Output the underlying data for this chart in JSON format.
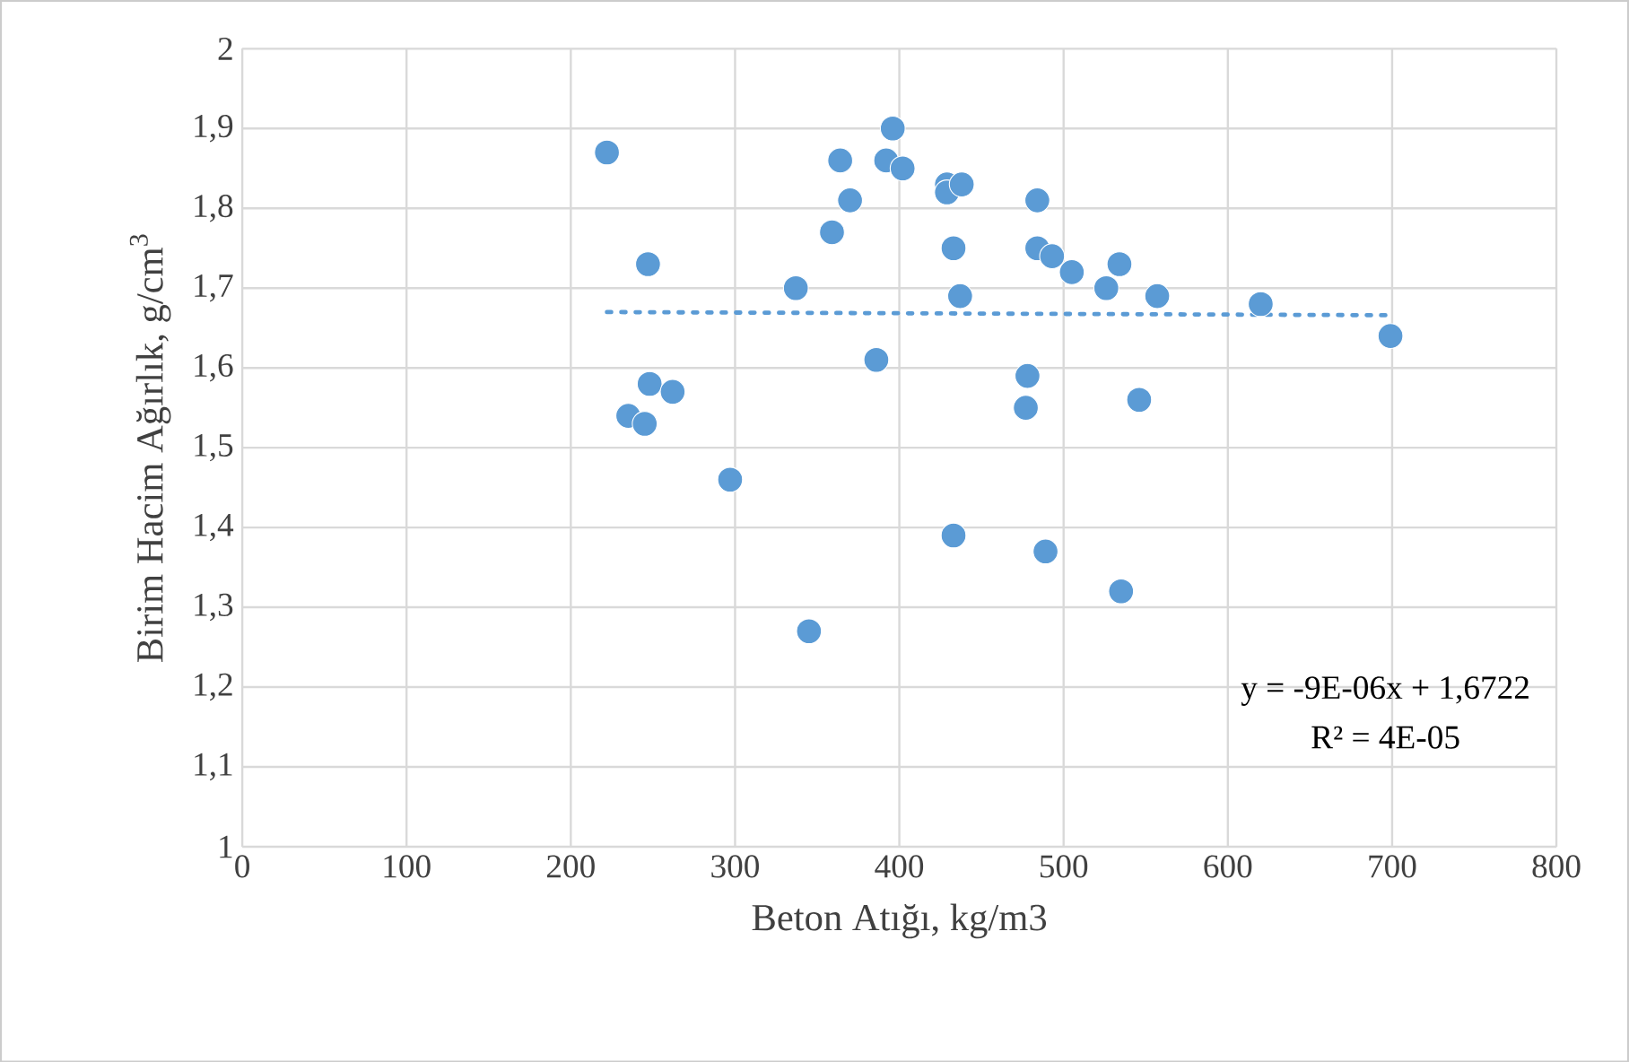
{
  "chart_data": {
    "type": "scatter",
    "xlabel": "Beton Atığı, kg/m3",
    "ylabel": "Birim Hacim Ağırlık, g/cm$^{3}$",
    "xlim": [
      0,
      800
    ],
    "xticks": [
      0,
      100,
      200,
      300,
      400,
      500,
      600,
      700,
      800
    ],
    "ylim": [
      1,
      2
    ],
    "yticks": [
      {
        "value": 1,
        "label": "1"
      },
      {
        "value": 1.1,
        "label": "1,1"
      },
      {
        "value": 1.2,
        "label": "1,2"
      },
      {
        "value": 1.3,
        "label": "1,3"
      },
      {
        "value": 1.4,
        "label": "1,4"
      },
      {
        "value": 1.5,
        "label": "1,5"
      },
      {
        "value": 1.6,
        "label": "1,6"
      },
      {
        "value": 1.7,
        "label": "1,7"
      },
      {
        "value": 1.8,
        "label": "1,8"
      },
      {
        "value": 1.9,
        "label": "1,9"
      },
      {
        "value": 2,
        "label": "2"
      }
    ],
    "grid": true,
    "series": [
      {
        "type": "scatter",
        "color": "#5b9bd5",
        "marker": "circle",
        "x": [
          222,
          247,
          235,
          248,
          245,
          262,
          297,
          337,
          359,
          364,
          370,
          386,
          392,
          396,
          402,
          429,
          429,
          438,
          433,
          437,
          433,
          345,
          484,
          484,
          493,
          505,
          526,
          534,
          477,
          478,
          557,
          546,
          489,
          535,
          620,
          699
        ],
        "values": [
          1.87,
          1.73,
          1.54,
          1.58,
          1.53,
          1.57,
          1.46,
          1.7,
          1.77,
          1.86,
          1.81,
          1.61,
          1.86,
          1.9,
          1.85,
          1.83,
          1.82,
          1.83,
          1.75,
          1.69,
          1.39,
          1.27,
          1.81,
          1.75,
          1.74,
          1.72,
          1.7,
          1.73,
          1.55,
          1.59,
          1.69,
          1.56,
          1.37,
          1.32,
          1.68,
          1.64
        ]
      },
      {
        "type": "line",
        "color": "#5b9bd5",
        "line_style": "dotted",
        "marker": "none",
        "x": [
          222,
          699
        ],
        "values": [
          1.67,
          1.666
        ]
      }
    ],
    "annotations": [
      "y = -9E-06x + 1,6722",
      "R² = 4E-05"
    ]
  }
}
